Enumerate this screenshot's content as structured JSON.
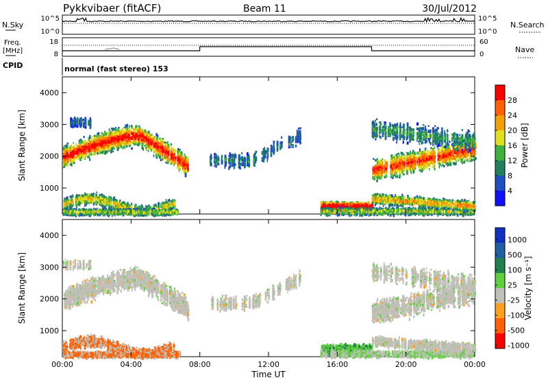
{
  "header": {
    "station": "Pykkvibaer (fitACF)",
    "beam": "Beam 11",
    "date": "30/Jul/2012"
  },
  "noise_panel": {
    "left_label": "N.Sky",
    "right_label": "N.Search",
    "ticks": [
      "10^5",
      "10^0"
    ]
  },
  "freq_panel": {
    "left_label_1": "Freq.",
    "left_label_2": "[MHz]",
    "left_ticks": [
      "18",
      "8"
    ],
    "right_label": "Nave",
    "right_ticks": [
      "60",
      "0"
    ]
  },
  "cpid": {
    "label": "CPID",
    "mode": "normal (fast stereo) 153"
  },
  "chart_data": [
    {
      "type": "heatmap",
      "name": "power-panel",
      "ylabel": "Slant Range [km]",
      "yticks": [
        "1000",
        "2000",
        "3000",
        "4000"
      ],
      "colorbar_label": "Power [dB]",
      "colorbar_ticks": [
        "4",
        "8",
        "12",
        "16",
        "20",
        "24",
        "28"
      ],
      "colors": [
        "#1010ff",
        "#2050c0",
        "#208060",
        "#40b040",
        "#e0e020",
        "#f0a000",
        "#ff6000",
        "#ff0000"
      ]
    },
    {
      "type": "heatmap",
      "name": "velocity-panel",
      "ylabel": "Slant Range [km]",
      "yticks": [
        "1000",
        "2000",
        "3000",
        "4000"
      ],
      "colorbar_label": "Velocity [m s⁻¹]",
      "colorbar_ticks": [
        "1000",
        "500",
        "100",
        "25",
        "-25",
        "-100",
        "-500",
        "-1000"
      ],
      "colors": [
        "#1030c0",
        "#2060a0",
        "#208050",
        "#60d040",
        "#c0c0b8",
        "#ffa020",
        "#ff6000",
        "#ff0000"
      ]
    }
  ],
  "xaxis": {
    "ticks": [
      "00:00",
      "04:00",
      "08:00",
      "12:00",
      "16:00",
      "20:00",
      "00:00"
    ],
    "label": "Time UT"
  }
}
